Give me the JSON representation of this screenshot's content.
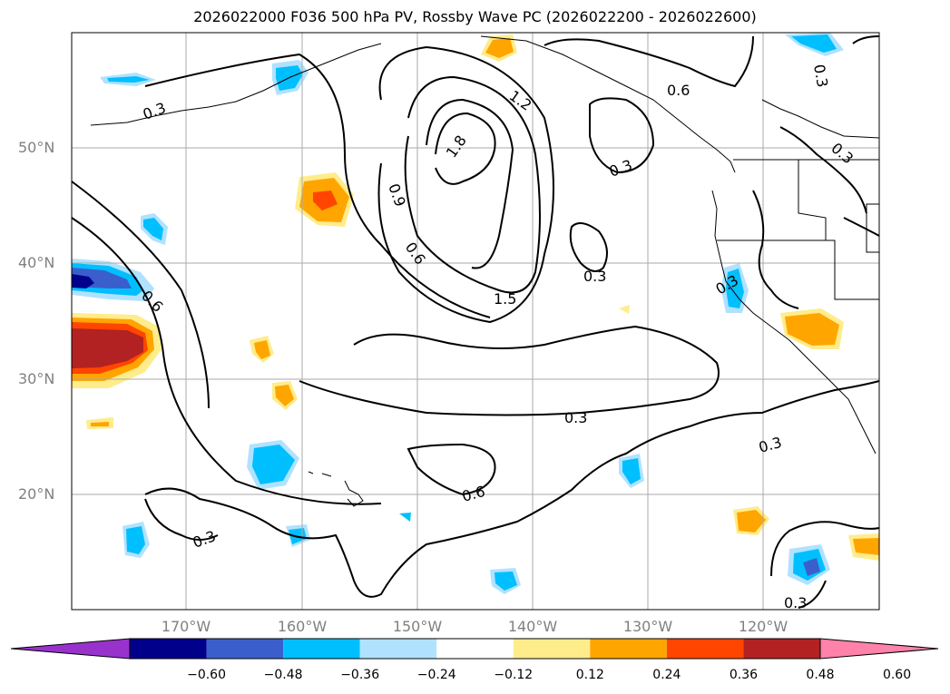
{
  "title": "2026022000 F036 500 hPa PV, Rossby Wave PC (2026022200 - 2026022600)",
  "lat_labels": [
    "50°N",
    "40°N",
    "30°N",
    "20°N"
  ],
  "lon_labels": [
    "170°W",
    "160°W",
    "150°W",
    "140°W",
    "130°W",
    "120°W"
  ],
  "colorbar": {
    "ticks": [
      "−0.60",
      "−0.48",
      "−0.36",
      "−0.24",
      "−0.12",
      "0.12",
      "0.24",
      "0.36",
      "0.48",
      "0.60"
    ],
    "colors": [
      "#9932cc",
      "#00008b",
      "#3a5fcd",
      "#00bfff",
      "#b0e2ff",
      "#ffffff",
      "#ffec8b",
      "#ffa500",
      "#ff4500",
      "#b22222",
      "#ff82ab"
    ]
  },
  "contour_labels": [
    "0.3",
    "0.6",
    "0.9",
    "1.2",
    "1.5",
    "1.8"
  ],
  "colors": {
    "contour": "#000000",
    "grid": "#aaaaaa",
    "coast": "#000000"
  }
}
